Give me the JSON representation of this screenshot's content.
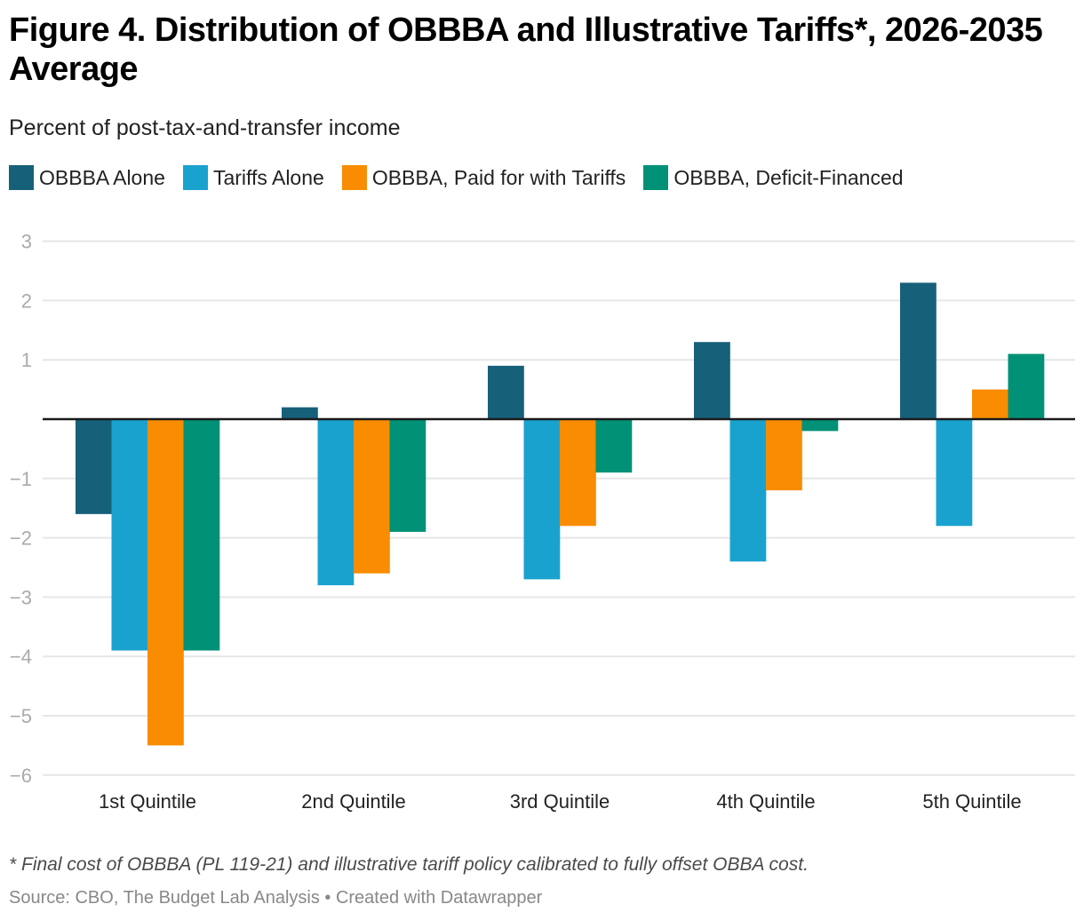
{
  "header": {
    "title": "Figure 4. Distribution of OBBBA and Illustrative Tariffs*, 2026-2035 Average",
    "subtitle": "Percent of post-tax-and-transfer income"
  },
  "legend": [
    {
      "label": "OBBBA Alone",
      "color": "#17607a"
    },
    {
      "label": "Tariffs Alone",
      "color": "#1aa2cf"
    },
    {
      "label": "OBBBA, Paid for with Tariffs",
      "color": "#f98c00"
    },
    {
      "label": "OBBBA, Deficit-Financed",
      "color": "#009176"
    }
  ],
  "footer": {
    "footnote": "* Final cost of OBBBA (PL 119-21) and illustrative tariff policy calibrated to fully offset OBBA cost.",
    "source": "Source: CBO, The Budget Lab Analysis • Created with Datawrapper"
  },
  "chart_data": {
    "type": "bar",
    "title": "Figure 4. Distribution of OBBBA and Illustrative Tariffs*, 2026-2035 Average",
    "subtitle": "Percent of post-tax-and-transfer income",
    "xlabel": "",
    "ylabel": "Percent of post-tax-and-transfer income",
    "categories": [
      "1st Quintile",
      "2nd Quintile",
      "3rd Quintile",
      "4th Quintile",
      "5th Quintile"
    ],
    "series": [
      {
        "name": "OBBBA Alone",
        "color": "#17607a",
        "values": [
          -1.6,
          0.2,
          0.9,
          1.3,
          2.3
        ]
      },
      {
        "name": "Tariffs Alone",
        "color": "#1aa2cf",
        "values": [
          -3.9,
          -2.8,
          -2.7,
          -2.4,
          -1.8
        ]
      },
      {
        "name": "OBBBA, Paid for with Tariffs",
        "color": "#f98c00",
        "values": [
          -5.5,
          -2.6,
          -1.8,
          -1.2,
          0.5
        ]
      },
      {
        "name": "OBBBA, Deficit-Financed",
        "color": "#009176",
        "values": [
          -3.9,
          -1.9,
          -0.9,
          -0.2,
          1.1
        ]
      }
    ],
    "ylim": [
      -6,
      3
    ],
    "yticks": [
      3,
      2,
      1,
      -1,
      -2,
      -3,
      -4,
      -5,
      -6
    ],
    "ytick_labels": [
      "3",
      "2",
      "1",
      "−1",
      "−2",
      "−3",
      "−4",
      "−5",
      "−6"
    ],
    "grid": true,
    "legend_position": "top-left"
  }
}
